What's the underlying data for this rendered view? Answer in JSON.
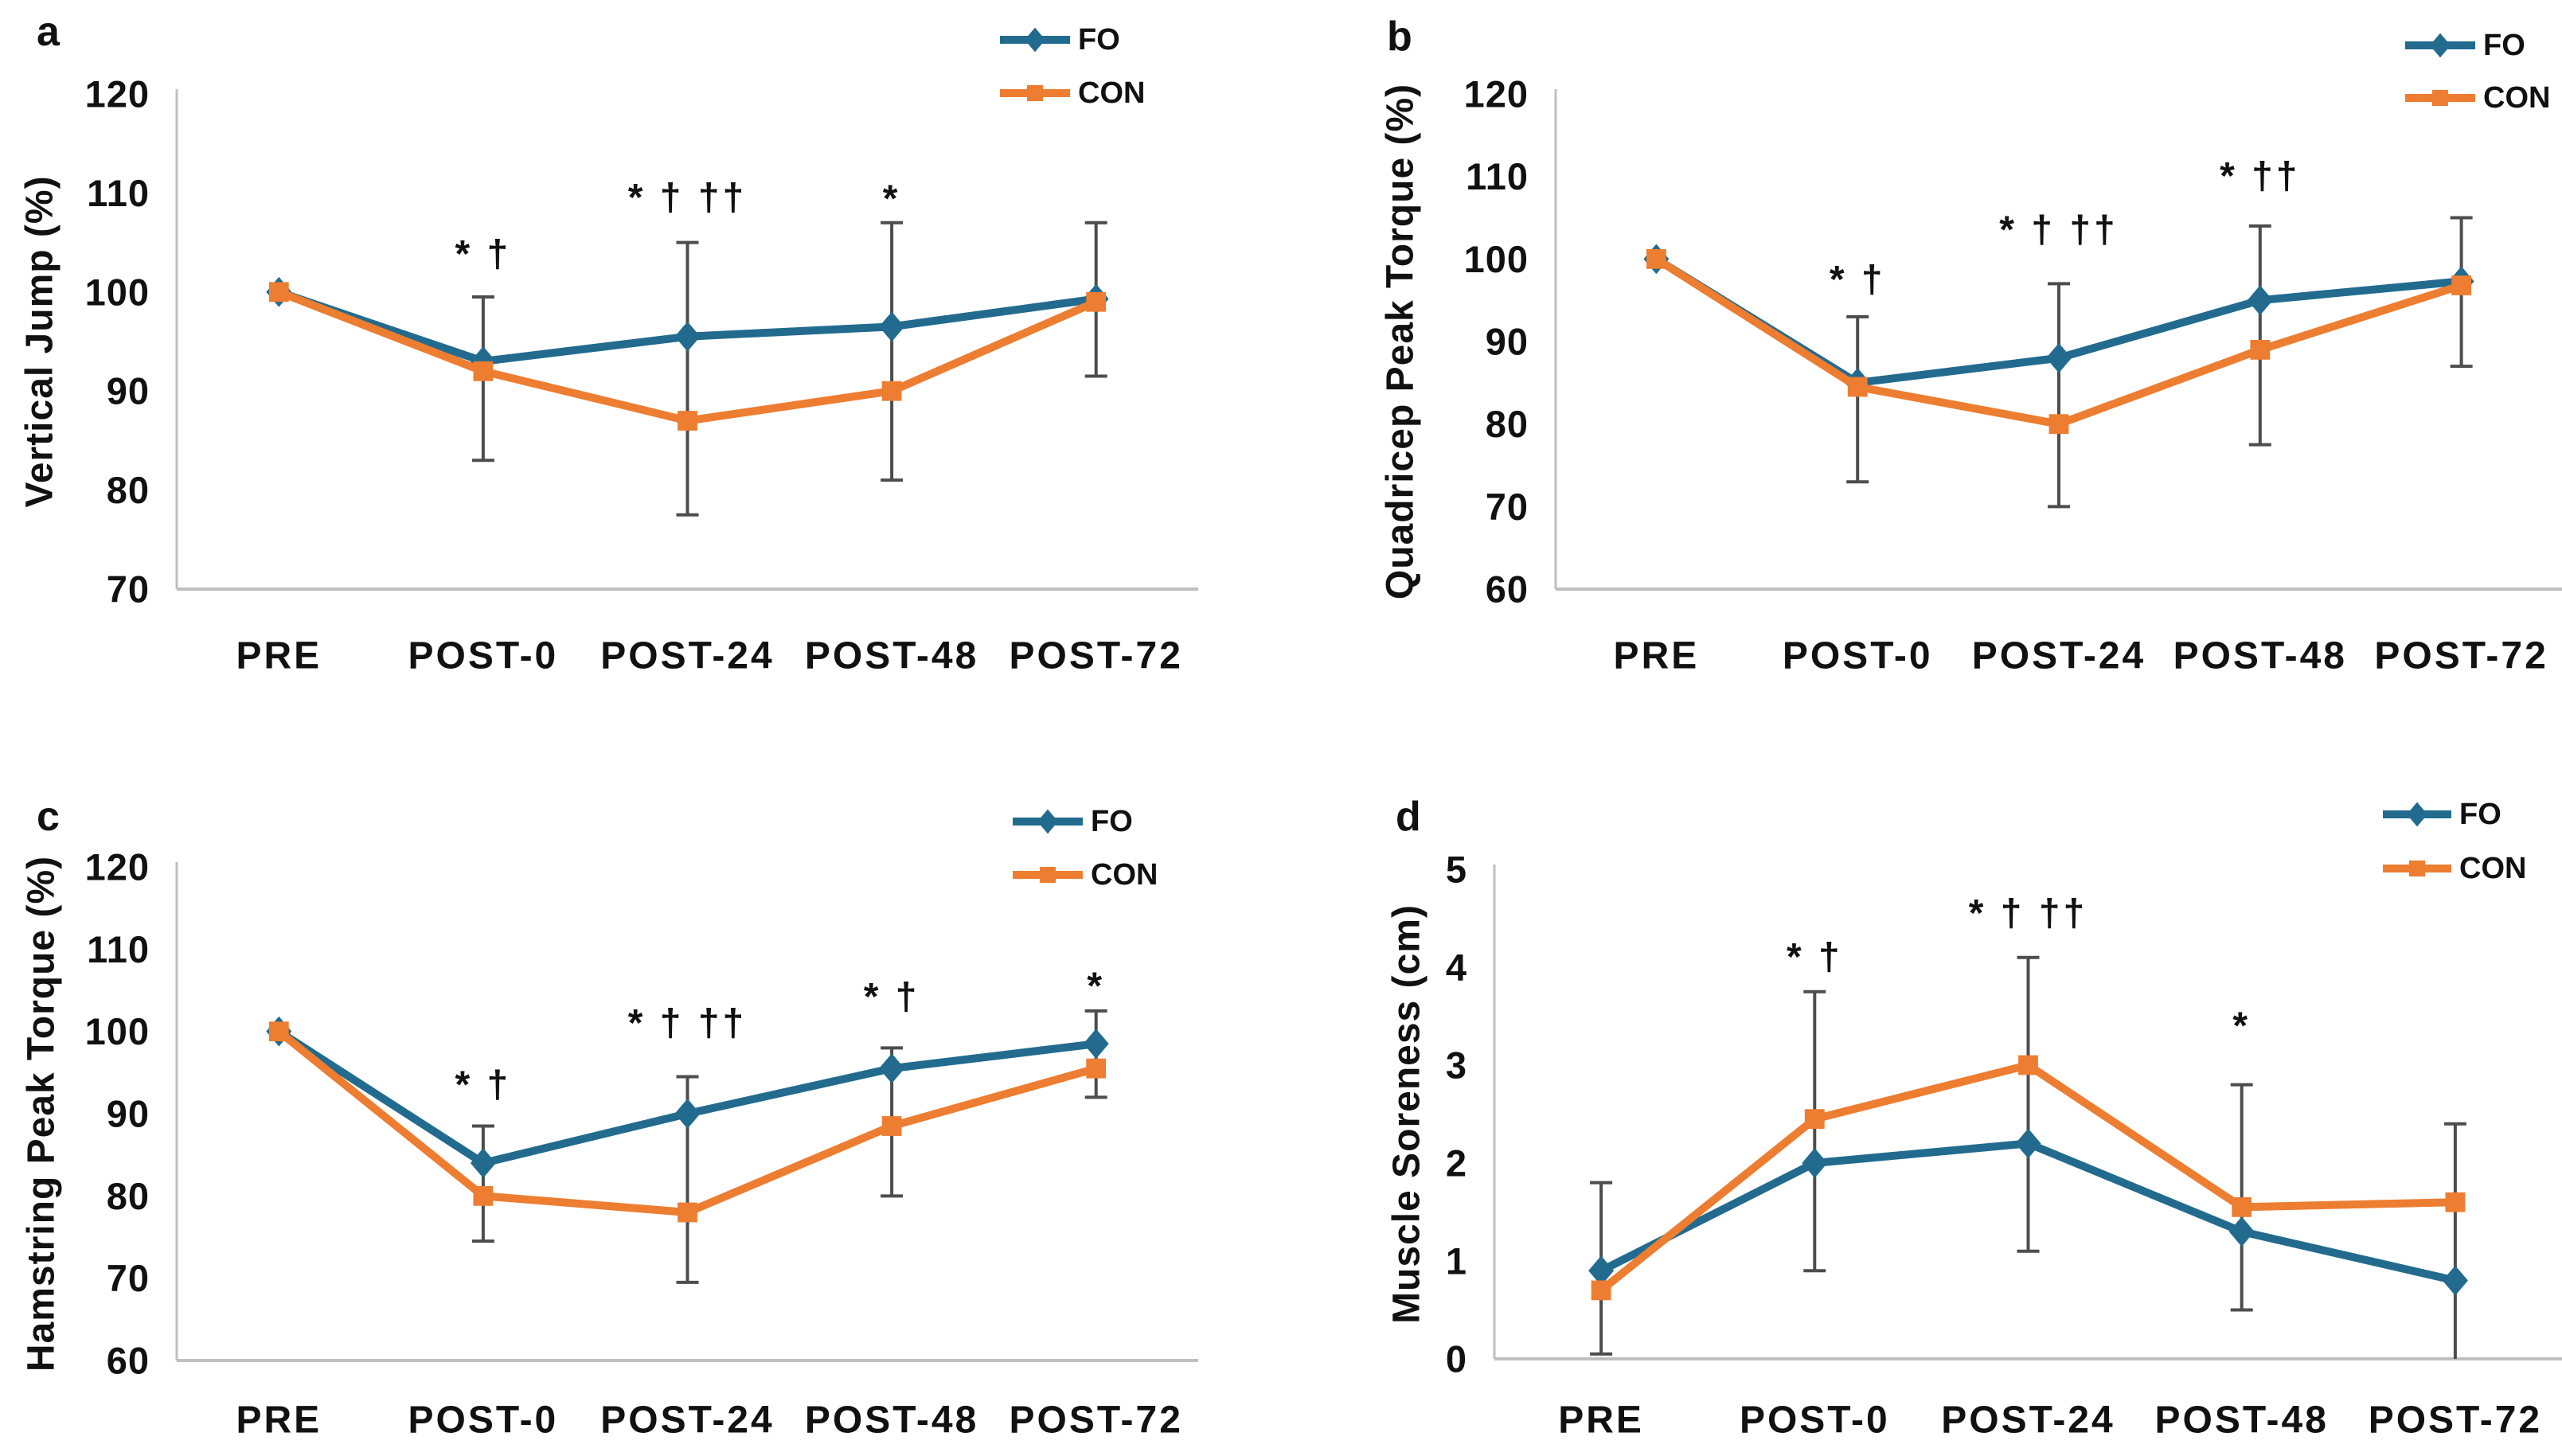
{
  "figure": {
    "background": "#ffffff",
    "axis_color": "#bfbfbf",
    "error_bar_color": "#4d4d4d",
    "text_color": "#111111",
    "fo_color": "#226b8e",
    "con_color": "#ed7d31"
  },
  "x_categories": [
    "PRE",
    "POST-0",
    "POST-24",
    "POST-48",
    "POST-72"
  ],
  "chart_data": [
    {
      "type": "line",
      "panel_letter": "a",
      "ylabel": "Vertical Jump (%)",
      "ylim": [
        70,
        120
      ],
      "ytick_step": 10,
      "yticks": [
        70,
        80,
        90,
        100,
        110,
        120
      ],
      "categories": [
        "PRE",
        "POST-0",
        "POST-24",
        "POST-48",
        "POST-72"
      ],
      "grid": false,
      "legend_position": "top-right",
      "series": [
        {
          "name": "FO",
          "marker": "diamond",
          "color": "#226b8e",
          "values": [
            100,
            93,
            95.5,
            96.5,
            99.3
          ]
        },
        {
          "name": "CON",
          "marker": "square",
          "color": "#ed7d31",
          "values": [
            100,
            92,
            87,
            90,
            99
          ]
        }
      ],
      "error_bars": [
        {
          "category": "POST-0",
          "low": 83,
          "high": 99.5
        },
        {
          "category": "POST-24",
          "low": 77.5,
          "high": 105
        },
        {
          "category": "POST-48",
          "low": 81,
          "high": 107
        },
        {
          "category": "POST-72",
          "low": 91.5,
          "high": 107
        }
      ],
      "annotations": [
        {
          "category": "POST-0",
          "text": "* †",
          "y": 103.8
        },
        {
          "category": "POST-24",
          "text": "* † ††",
          "y": 109.5
        },
        {
          "category": "POST-48",
          "text": "*",
          "y": 109.4
        }
      ]
    },
    {
      "type": "line",
      "panel_letter": "b",
      "ylabel": "Quadricep Peak Torque (%)",
      "ylim": [
        60,
        120
      ],
      "ytick_step": 10,
      "yticks": [
        60,
        70,
        80,
        90,
        100,
        110,
        120
      ],
      "categories": [
        "PRE",
        "POST-0",
        "POST-24",
        "POST-48",
        "POST-72"
      ],
      "grid": false,
      "legend_position": "top-right",
      "series": [
        {
          "name": "FO",
          "marker": "diamond",
          "color": "#226b8e",
          "values": [
            100,
            85,
            88,
            95,
            97.3
          ]
        },
        {
          "name": "CON",
          "marker": "square",
          "color": "#ed7d31",
          "values": [
            100,
            84.5,
            80,
            89,
            96.8
          ]
        }
      ],
      "error_bars": [
        {
          "category": "POST-0",
          "low": 73,
          "high": 93
        },
        {
          "category": "POST-24",
          "low": 70,
          "high": 97
        },
        {
          "category": "POST-48",
          "low": 77.5,
          "high": 104
        },
        {
          "category": "POST-72",
          "low": 87,
          "high": 105
        }
      ],
      "annotations": [
        {
          "category": "POST-0",
          "text": "* †",
          "y": 97.5
        },
        {
          "category": "POST-24",
          "text": "* † ††",
          "y": 103.5
        },
        {
          "category": "POST-48",
          "text": "* ††",
          "y": 110
        }
      ]
    },
    {
      "type": "line",
      "panel_letter": "c",
      "ylabel": "Hamstring Peak Torque (%)",
      "ylim": [
        60,
        120
      ],
      "ytick_step": 10,
      "yticks": [
        60,
        70,
        80,
        90,
        100,
        110,
        120
      ],
      "categories": [
        "PRE",
        "POST-0",
        "POST-24",
        "POST-48",
        "POST-72"
      ],
      "grid": false,
      "legend_position": "top-right",
      "series": [
        {
          "name": "FO",
          "marker": "diamond",
          "color": "#226b8e",
          "values": [
            100,
            84,
            90,
            95.5,
            98.5
          ]
        },
        {
          "name": "CON",
          "marker": "square",
          "color": "#ed7d31",
          "values": [
            100,
            80,
            78,
            88.5,
            95.5
          ]
        }
      ],
      "error_bars": [
        {
          "category": "POST-0",
          "low": 74.5,
          "high": 88.5
        },
        {
          "category": "POST-24",
          "low": 69.5,
          "high": 94.5
        },
        {
          "category": "POST-48",
          "low": 80,
          "high": 98
        },
        {
          "category": "POST-72",
          "low": 92,
          "high": 102.5
        }
      ],
      "annotations": [
        {
          "category": "POST-0",
          "text": "* †",
          "y": 93.5
        },
        {
          "category": "POST-24",
          "text": "* † ††",
          "y": 101
        },
        {
          "category": "POST-48",
          "text": "* †",
          "y": 104.2
        },
        {
          "category": "POST-72",
          "text": "*",
          "y": 105.5
        }
      ]
    },
    {
      "type": "line",
      "panel_letter": "d",
      "ylabel": "Muscle Soreness (cm)",
      "ylim": [
        0,
        5
      ],
      "ytick_step": 1,
      "yticks": [
        0,
        1,
        2,
        3,
        4,
        5
      ],
      "categories": [
        "PRE",
        "POST-0",
        "POST-24",
        "POST-48",
        "POST-72"
      ],
      "grid": false,
      "legend_position": "top-right",
      "series": [
        {
          "name": "FO",
          "marker": "diamond",
          "color": "#226b8e",
          "values": [
            0.9,
            2.0,
            2.2,
            1.3,
            0.8
          ]
        },
        {
          "name": "CON",
          "marker": "square",
          "color": "#ed7d31",
          "values": [
            0.7,
            2.45,
            3.0,
            1.55,
            1.6
          ]
        }
      ],
      "error_bars": [
        {
          "category": "PRE",
          "low": 0.05,
          "high": 1.8
        },
        {
          "category": "POST-0",
          "low": 0.9,
          "high": 3.75
        },
        {
          "category": "POST-24",
          "low": 1.1,
          "high": 4.1
        },
        {
          "category": "POST-48",
          "low": 0.5,
          "high": 2.8
        },
        {
          "category": "POST-72",
          "low": 0.0,
          "high": 2.4
        }
      ],
      "annotations": [
        {
          "category": "POST-0",
          "text": "* †",
          "y": 4.1
        },
        {
          "category": "POST-24",
          "text": "* † ††",
          "y": 4.55
        },
        {
          "category": "POST-48",
          "text": "*",
          "y": 3.4
        }
      ]
    }
  ],
  "legend": {
    "fo_label": "FO",
    "con_label": "CON"
  }
}
